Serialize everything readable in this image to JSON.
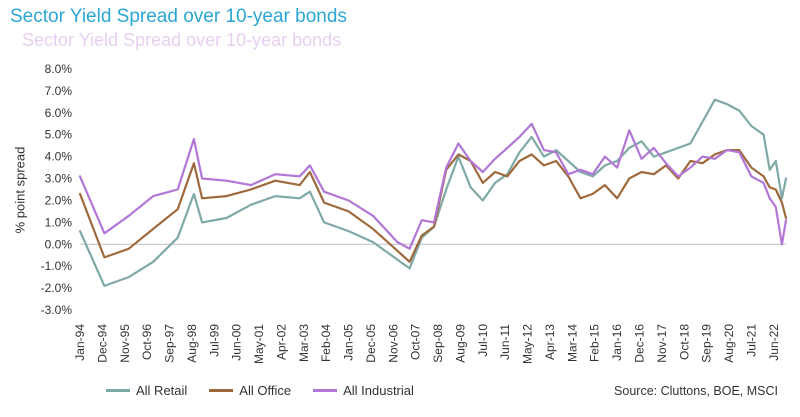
{
  "page_title": "Sector Yield Spread over 10-year bonds",
  "ghost_title": "Sector Yield Spread over 10-year bonds",
  "source": "Source: Cluttons, BOE, MSCI",
  "chart_data": {
    "type": "line",
    "title": "Sector Yield Spread over 10-year bonds",
    "xlabel": "",
    "ylabel": "% point spread",
    "ylim": [
      -3.0,
      8.0
    ],
    "yticks": [
      -3.0,
      -2.0,
      -1.0,
      0.0,
      1.0,
      2.0,
      3.0,
      4.0,
      5.0,
      6.0,
      7.0,
      8.0
    ],
    "ytick_labels": [
      "-3.0%",
      "-2.0%",
      "-1.0%",
      "0.0%",
      "1.0%",
      "2.0%",
      "3.0%",
      "4.0%",
      "5.0%",
      "6.0%",
      "7.0%",
      "8.0%"
    ],
    "x_start": "Jan-94",
    "x_end": "Dec-22",
    "x_tick_labels": [
      "Jan-94",
      "Dec-94",
      "Nov-95",
      "Oct-96",
      "Sep-97",
      "Aug-98",
      "Jul-99",
      "Jun-00",
      "May-01",
      "Apr-02",
      "Mar-03",
      "Feb-04",
      "Jan-05",
      "Dec-05",
      "Nov-06",
      "Oct-07",
      "Sep-08",
      "Aug-09",
      "Jul-10",
      "Jun-11",
      "May-12",
      "Apr-13",
      "Mar-14",
      "Feb-15",
      "Jan-16",
      "Dec-16",
      "Nov-17",
      "Oct-18",
      "Sep-19",
      "Aug-20",
      "Jul-21",
      "Jun-22"
    ],
    "grid": false,
    "legend_position": "bottom-left",
    "x": [
      "Jan-94",
      "Jan-95",
      "Jan-96",
      "Jan-97",
      "Jan-98",
      "Sep-98",
      "Jan-99",
      "Jan-00",
      "Jan-01",
      "Jan-02",
      "Jan-03",
      "Jun-03",
      "Jan-04",
      "Jan-05",
      "Jan-06",
      "Jan-07",
      "Jul-07",
      "Jan-08",
      "Jul-08",
      "Jan-09",
      "Jul-09",
      "Jan-10",
      "Jul-10",
      "Jan-11",
      "Jul-11",
      "Jan-12",
      "Jul-12",
      "Jan-13",
      "Jul-13",
      "Jan-14",
      "Jul-14",
      "Jan-15",
      "Jul-15",
      "Jan-16",
      "Jul-16",
      "Jan-17",
      "Jul-17",
      "Jan-18",
      "Jul-18",
      "Jan-19",
      "Jul-19",
      "Jan-20",
      "Jul-20",
      "Jan-21",
      "Jul-21",
      "Jan-22",
      "Apr-22",
      "Jul-22",
      "Oct-22",
      "Dec-22"
    ],
    "series": [
      {
        "name": "All Retail",
        "color": "#7fa9a6",
        "values": [
          0.6,
          -1.9,
          -1.5,
          -0.8,
          0.3,
          2.3,
          1.0,
          1.2,
          1.8,
          2.2,
          2.1,
          2.4,
          1.0,
          0.6,
          0.1,
          -0.7,
          -1.1,
          0.3,
          0.8,
          2.5,
          4.0,
          2.6,
          2.0,
          2.8,
          3.2,
          4.2,
          4.9,
          4.0,
          4.3,
          3.8,
          3.3,
          3.1,
          3.6,
          3.8,
          4.4,
          4.7,
          4.0,
          4.2,
          4.4,
          4.6,
          5.6,
          6.6,
          6.4,
          6.1,
          5.4,
          5.0,
          3.4,
          3.8,
          2.1,
          3.0
        ]
      },
      {
        "name": "All Office",
        "color": "#9e6a3d",
        "values": [
          2.3,
          -0.6,
          -0.2,
          0.7,
          1.6,
          3.7,
          2.1,
          2.2,
          2.5,
          2.9,
          2.7,
          3.3,
          1.9,
          1.5,
          0.7,
          -0.3,
          -0.8,
          0.4,
          0.8,
          3.4,
          4.1,
          3.8,
          2.8,
          3.3,
          3.1,
          3.8,
          4.1,
          3.6,
          3.8,
          3.1,
          2.1,
          2.3,
          2.7,
          2.1,
          3.0,
          3.3,
          3.2,
          3.6,
          3.0,
          3.8,
          3.7,
          4.1,
          4.3,
          4.3,
          3.5,
          3.1,
          2.6,
          2.5,
          1.9,
          1.2
        ]
      },
      {
        "name": "All Industrial",
        "color": "#b276d6",
        "values": [
          3.1,
          0.5,
          1.3,
          2.2,
          2.5,
          4.8,
          3.0,
          2.9,
          2.7,
          3.2,
          3.1,
          3.6,
          2.4,
          2.0,
          1.3,
          0.1,
          -0.2,
          1.1,
          1.0,
          3.5,
          4.6,
          3.8,
          3.3,
          3.9,
          4.4,
          4.9,
          5.5,
          4.3,
          4.2,
          3.2,
          3.4,
          3.2,
          4.0,
          3.5,
          5.2,
          3.9,
          4.4,
          3.7,
          3.1,
          3.5,
          4.0,
          3.9,
          4.3,
          4.2,
          3.1,
          2.8,
          2.1,
          1.7,
          0.0,
          1.1
        ]
      }
    ]
  }
}
